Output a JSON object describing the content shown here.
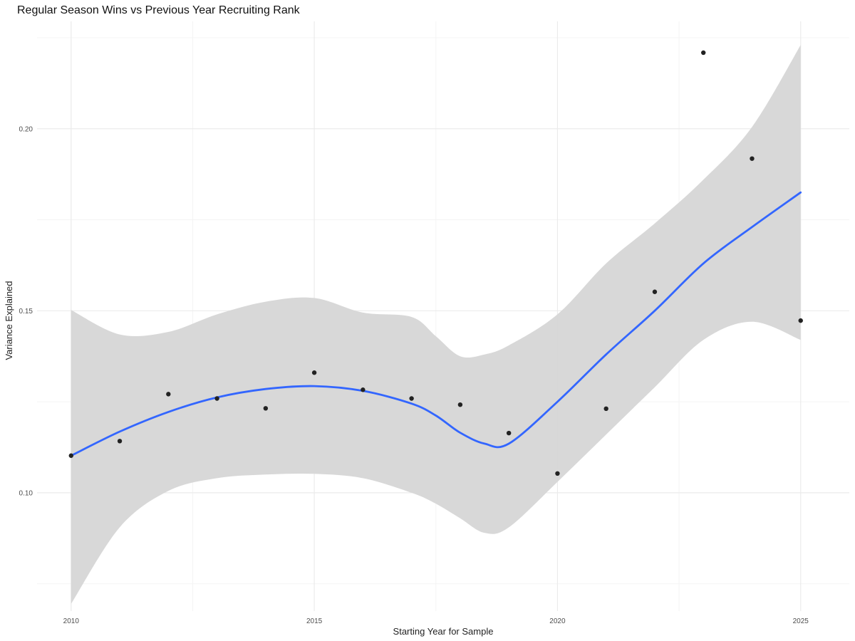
{
  "chart_data": {
    "type": "scatter",
    "title": "Regular Season Wins vs Previous Year Recruiting Rank",
    "xlabel": "Starting Year for Sample",
    "ylabel": "Variance Explained",
    "xlim": [
      2009.3,
      2026.0
    ],
    "ylim": [
      0.0675,
      0.2295
    ],
    "x_ticks": [
      2010,
      2015,
      2020,
      2025
    ],
    "x_tick_labels": [
      "2010",
      "2015",
      "2020",
      "2025"
    ],
    "y_ticks": [
      0.1,
      0.15,
      0.2
    ],
    "y_tick_labels": [
      "0.10",
      "0.15",
      "0.20"
    ],
    "grid": true,
    "legend": "none",
    "points": {
      "x": [
        2010,
        2011,
        2012,
        2013,
        2014,
        2015,
        2016,
        2017,
        2018,
        2019,
        2020,
        2021,
        2022,
        2023,
        2024,
        2025
      ],
      "y": [
        0.1102,
        0.1142,
        0.1271,
        0.1259,
        0.1232,
        0.133,
        0.1283,
        0.1259,
        0.1242,
        0.1164,
        0.1053,
        0.1231,
        0.1552,
        0.2209,
        0.1918,
        0.1473
      ]
    },
    "smooth": {
      "x": [
        2010,
        2011,
        2012,
        2013,
        2014,
        2015,
        2016,
        2017,
        2017.5,
        2018,
        2018.5,
        2019,
        2020,
        2021,
        2022,
        2023,
        2024,
        2025
      ],
      "y": [
        0.1102,
        0.1168,
        0.1222,
        0.1262,
        0.1285,
        0.1293,
        0.128,
        0.1245,
        0.1212,
        0.1165,
        0.1135,
        0.1135,
        0.125,
        0.138,
        0.15,
        0.163,
        0.173,
        0.1825
      ],
      "lower": [
        0.0695,
        0.0905,
        0.1005,
        0.104,
        0.105,
        0.1052,
        0.104,
        0.1,
        0.097,
        0.093,
        0.089,
        0.0905,
        0.103,
        0.116,
        0.129,
        0.142,
        0.147,
        0.142
      ],
      "upper": [
        0.1502,
        0.1435,
        0.1442,
        0.149,
        0.1525,
        0.1535,
        0.1495,
        0.1483,
        0.143,
        0.1375,
        0.138,
        0.1405,
        0.149,
        0.163,
        0.174,
        0.186,
        0.2005,
        0.223
      ]
    },
    "colors": {
      "line": "#3366ff",
      "band": "#d6d6d6",
      "points": "#222222",
      "grid_major": "#ebebeb",
      "grid_minor": "#f4f4f4"
    }
  }
}
